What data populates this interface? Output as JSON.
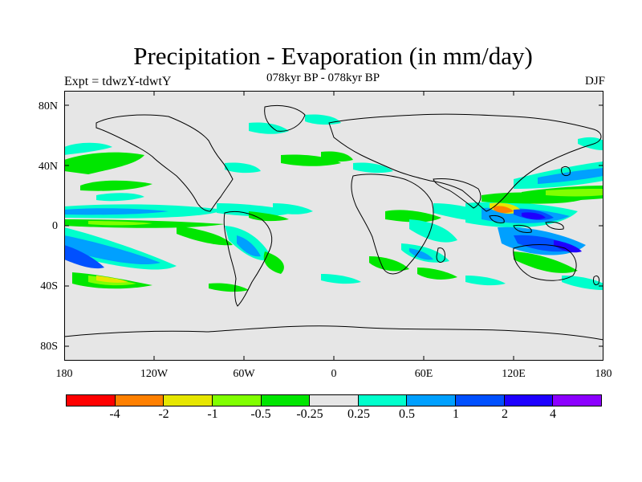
{
  "title": "Precipitation - Evaporation (in mm/day)",
  "subtitle": "078kyr BP - 078kyr BP",
  "left_label": "Expt = tdwzY-tdwtY",
  "right_label": "DJF",
  "map": {
    "land_fill": "#e6e6e6",
    "coastline_color": "#000000",
    "lat_ticks": [
      "80N",
      "40N",
      "0",
      "40S",
      "80S"
    ],
    "lon_ticks": [
      "180",
      "120W",
      "60W",
      "0",
      "60E",
      "120E",
      "180"
    ]
  },
  "colorbar": {
    "colors": [
      "#ff0000",
      "#ff8000",
      "#e6e600",
      "#80ff00",
      "#00e600",
      "#e6e6e6",
      "#00ffcc",
      "#00a0ff",
      "#0050ff",
      "#1e00ff",
      "#8c00ff"
    ],
    "labels": [
      "-4",
      "-2",
      "-1",
      "-0.5",
      "-0.25",
      "0.25",
      "0.5",
      "1",
      "2",
      "4"
    ]
  },
  "field_colors": {
    "wet_light": "#00ffcc",
    "wet_mid": "#00a0ff",
    "wet_strong": "#0050ff",
    "wet_max": "#1e00ff",
    "dry_light": "#00e600",
    "dry_mid": "#80ff00",
    "dry_strong": "#e6e600",
    "dry_max": "#ff8000",
    "dry_extreme": "#ff0000"
  }
}
